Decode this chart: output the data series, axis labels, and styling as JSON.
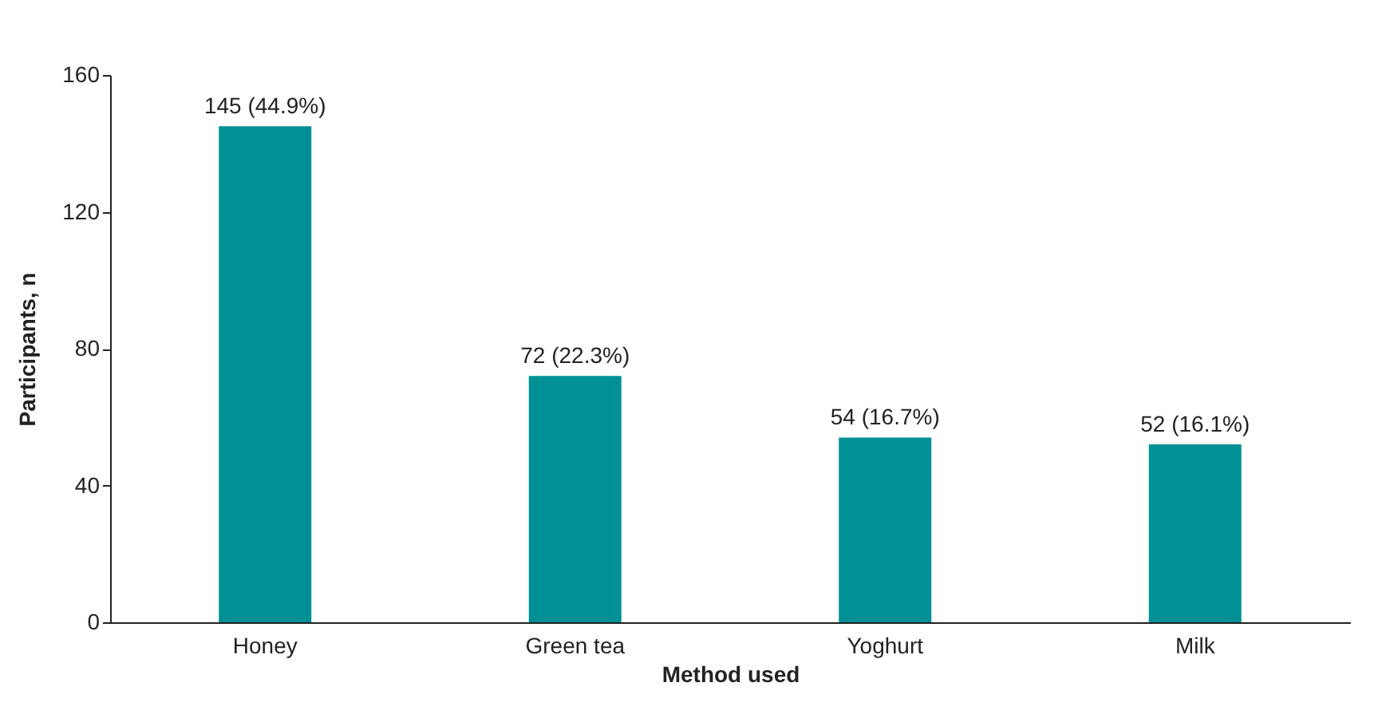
{
  "chart_data": {
    "type": "bar",
    "categories": [
      "Honey",
      "Green tea",
      "Yoghurt",
      "Milk"
    ],
    "values": [
      145,
      72,
      54,
      52
    ],
    "value_labels": [
      "145 (44.9%)",
      "72 (22.3%)",
      "54 (16.7%)",
      "52 (16.1%)"
    ],
    "color": "#009096",
    "xlabel": "Method used",
    "ylabel": "Participants, n",
    "ylim": [
      0,
      160
    ],
    "yticks": [
      0,
      40,
      80,
      120,
      160
    ],
    "grid": false
  }
}
